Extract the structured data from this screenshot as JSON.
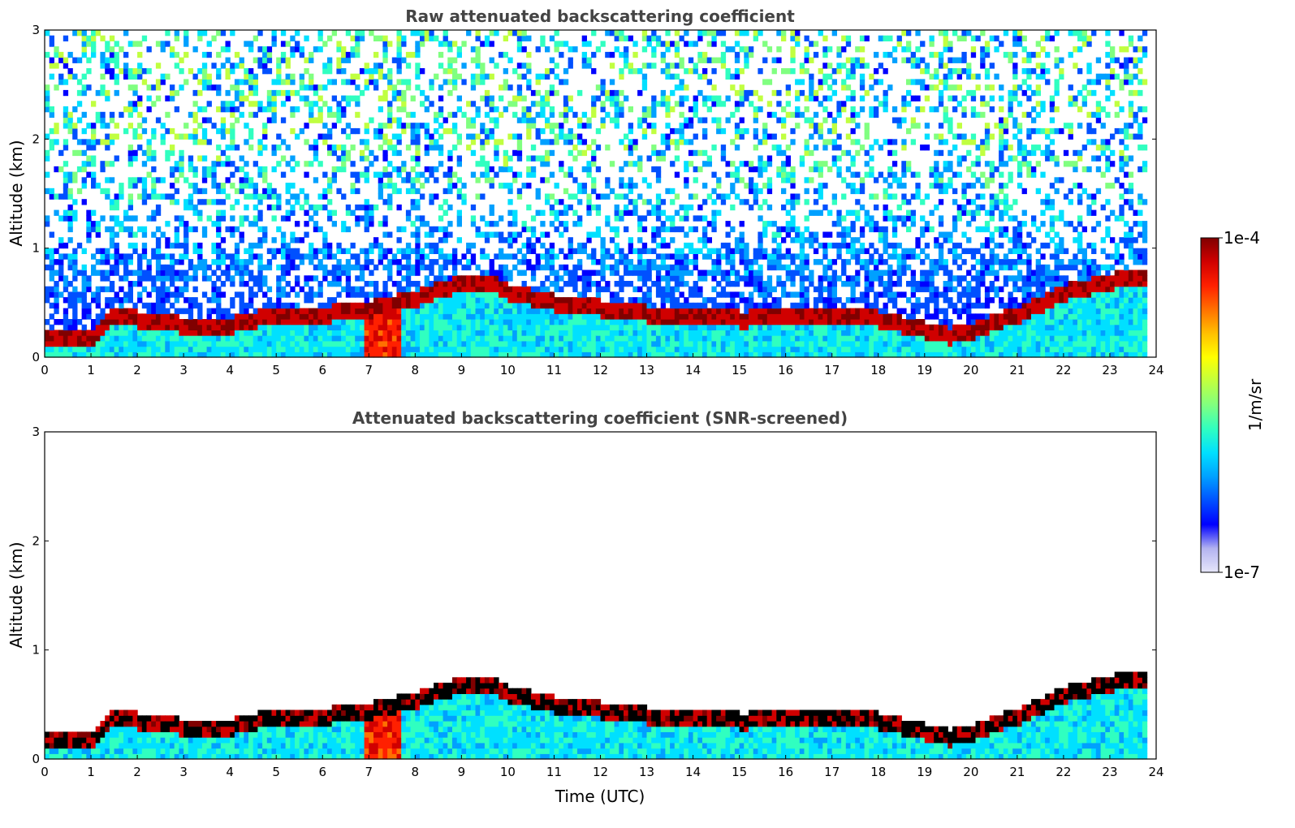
{
  "colors": {
    "colormap": [
      "#e6e6fa",
      "#b3b3f0",
      "#0000ff",
      "#0050ff",
      "#00a0ff",
      "#00e0ff",
      "#30ffc0",
      "#80ff80",
      "#c0ff40",
      "#ffff00",
      "#ffc000",
      "#ff7000",
      "#ff2000",
      "#d00000",
      "#800000"
    ],
    "clipped": "#000000"
  },
  "colorbar": {
    "label": "1/m/sr",
    "max_label": "1e-4",
    "min_label": "1e-7",
    "scale": "log",
    "range": [
      1e-07,
      0.0001
    ]
  },
  "chart_data": [
    {
      "type": "heatmap",
      "title": "Raw attenuated backscattering coefficient",
      "xlabel": "",
      "ylabel": "Altitude (km)",
      "xlim": [
        0,
        24
      ],
      "ylim": [
        0,
        3
      ],
      "xticks": [
        "0",
        "1",
        "2",
        "3",
        "4",
        "5",
        "6",
        "7",
        "8",
        "9",
        "10",
        "11",
        "12",
        "13",
        "14",
        "15",
        "16",
        "17",
        "18",
        "19",
        "20",
        "21",
        "22",
        "23",
        "24"
      ],
      "yticks": [
        "0",
        "1",
        "2",
        "3"
      ],
      "boundary_layer_top_km": {
        "time": [
          0,
          1,
          1.5,
          2,
          3,
          4,
          5,
          6,
          7,
          8,
          9,
          9.5,
          10,
          11,
          12,
          13,
          14,
          15,
          16,
          17,
          18,
          19,
          19.5,
          20,
          21,
          22,
          23,
          23.8
        ],
        "height": [
          0.2,
          0.2,
          0.4,
          0.35,
          0.3,
          0.3,
          0.4,
          0.4,
          0.45,
          0.55,
          0.7,
          0.7,
          0.6,
          0.5,
          0.45,
          0.4,
          0.4,
          0.35,
          0.4,
          0.4,
          0.35,
          0.25,
          0.2,
          0.25,
          0.4,
          0.6,
          0.7,
          0.75
        ]
      },
      "screened": false
    },
    {
      "type": "heatmap",
      "title": "Attenuated backscattering coefficient (SNR-screened)",
      "xlabel": "Time (UTC)",
      "ylabel": "Altitude (km)",
      "xlim": [
        0,
        24
      ],
      "ylim": [
        0,
        3
      ],
      "xticks": [
        "0",
        "1",
        "2",
        "3",
        "4",
        "5",
        "6",
        "7",
        "8",
        "9",
        "10",
        "11",
        "12",
        "13",
        "14",
        "15",
        "16",
        "17",
        "18",
        "19",
        "20",
        "21",
        "22",
        "23",
        "24"
      ],
      "yticks": [
        "0",
        "1",
        "2",
        "3"
      ],
      "boundary_layer_top_km": {
        "time": [
          0,
          1,
          1.5,
          2,
          3,
          4,
          5,
          6,
          7,
          8,
          9,
          9.5,
          10,
          11,
          12,
          13,
          14,
          15,
          16,
          17,
          18,
          19,
          19.5,
          20,
          21,
          22,
          23,
          23.8
        ],
        "height": [
          0.2,
          0.2,
          0.4,
          0.35,
          0.3,
          0.3,
          0.4,
          0.4,
          0.45,
          0.55,
          0.7,
          0.7,
          0.6,
          0.5,
          0.45,
          0.4,
          0.4,
          0.35,
          0.4,
          0.4,
          0.35,
          0.25,
          0.2,
          0.25,
          0.4,
          0.6,
          0.7,
          0.75
        ]
      },
      "screened": true
    }
  ]
}
